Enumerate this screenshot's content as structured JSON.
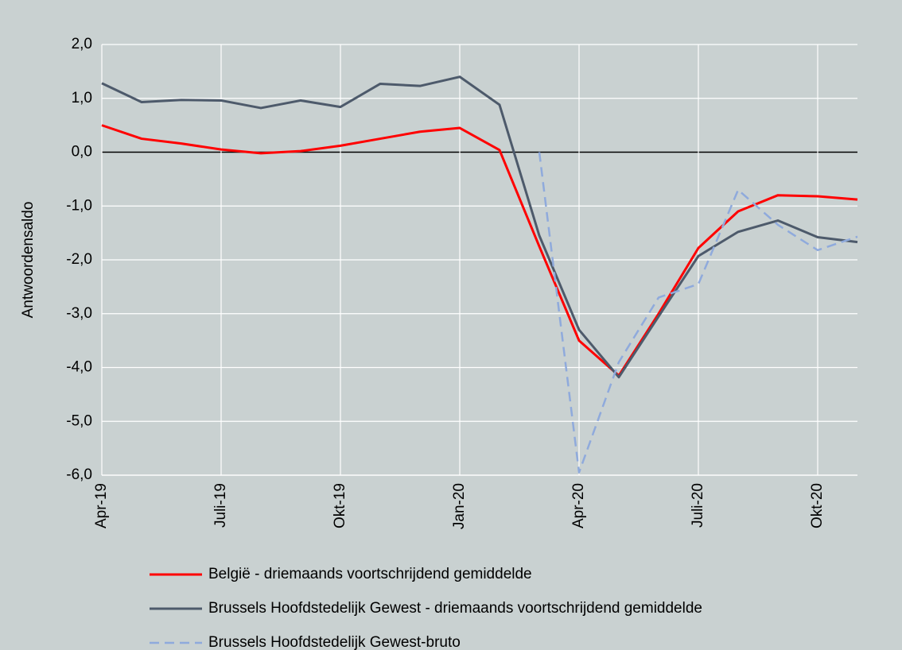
{
  "chart_data": {
    "type": "line",
    "y_label": "Antwoordensaldo",
    "categories": [
      "Apr-19",
      null,
      null,
      "Juli-19",
      null,
      null,
      "Okt-19",
      null,
      null,
      "Jan-20",
      null,
      null,
      "Apr-20",
      null,
      null,
      "Juli-20",
      null,
      null,
      "Okt-20",
      null
    ],
    "series": [
      {
        "name": "België - driemaands voortschrijdend gemiddelde",
        "color": "#ff0000",
        "dash": false,
        "values": [
          0.5,
          0.25,
          0.16,
          0.05,
          -0.02,
          0.02,
          0.12,
          0.25,
          0.38,
          0.45,
          0.04,
          -1.75,
          -3.5,
          -4.15,
          -3.0,
          -1.78,
          -1.1,
          -0.8,
          -0.82,
          -0.88
        ]
      },
      {
        "name": "Brussels Hoofdstedelijk Gewest - driemaands voortschrijdend gemiddelde",
        "color": "#4d5a6b",
        "dash": false,
        "values": [
          1.28,
          0.93,
          0.97,
          0.96,
          0.82,
          0.96,
          0.84,
          1.27,
          1.23,
          1.4,
          0.88,
          -1.55,
          -3.3,
          -4.18,
          -3.05,
          -1.93,
          -1.48,
          -1.27,
          -1.58,
          -1.67
        ]
      },
      {
        "name": "Brussels Hoofdstedelijk Gewest-bruto",
        "color": "#8faadc",
        "dash": true,
        "values": [
          null,
          null,
          null,
          null,
          null,
          null,
          null,
          null,
          null,
          null,
          null,
          0.0,
          -5.95,
          -3.9,
          -2.7,
          -2.45,
          -0.7,
          -1.35,
          -1.82,
          -1.57
        ]
      }
    ],
    "ylim": [
      -6,
      2
    ],
    "yticks": [
      {
        "value": -6,
        "label": "-6,0"
      },
      {
        "value": -5,
        "label": "-5,0"
      },
      {
        "value": -4,
        "label": "-4,0"
      },
      {
        "value": -3,
        "label": "-3,0"
      },
      {
        "value": -2,
        "label": "-2,0"
      },
      {
        "value": -1,
        "label": "-1,0"
      },
      {
        "value": 0,
        "label": "0,0"
      },
      {
        "value": 1,
        "label": "1,0"
      },
      {
        "value": 2,
        "label": "2,0"
      }
    ],
    "grid": true,
    "legend": "bottom"
  }
}
